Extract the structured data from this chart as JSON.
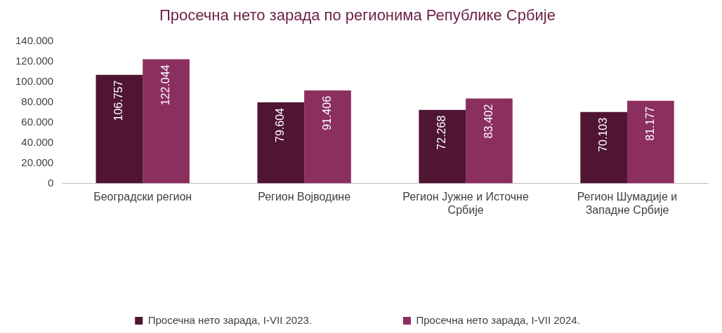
{
  "chart_data": {
    "type": "bar",
    "title": "Просечна нето зарада по регионима Републике Србије",
    "categories": [
      "Београдски регион",
      "Регион Војводине",
      "Регион Јужне и Источне Србије",
      "Регион Шумадије и Западне Србије"
    ],
    "series": [
      {
        "name": "Просечна нето зарада, I-VII 2023.",
        "color": "#4f1533",
        "values": [
          106757,
          79604,
          72268,
          70103
        ],
        "value_labels": [
          "106.757",
          "79.604",
          "72.268",
          "70.103"
        ]
      },
      {
        "name": "Просечна нето зарада, I-VII 2024.",
        "color": "#8b2f5f",
        "values": [
          122044,
          91406,
          83402,
          81177
        ],
        "value_labels": [
          "122.044",
          "91.406",
          "83.402",
          "81.177"
        ]
      }
    ],
    "ylim": [
      0,
      140000
    ],
    "yticks": [
      0,
      {
        "value": 20000,
        "label": "20.000"
      },
      {
        "value": 40000,
        "label": "40.000"
      },
      {
        "value": 60000,
        "label": "60.000"
      },
      {
        "value": 80000,
        "label": "80.000"
      },
      {
        "value": 100000,
        "label": "100.000"
      },
      {
        "value": 120000,
        "label": "120.000"
      },
      {
        "value": 140000,
        "label": "140.000"
      }
    ],
    "legend": "bottom",
    "grid": false
  }
}
